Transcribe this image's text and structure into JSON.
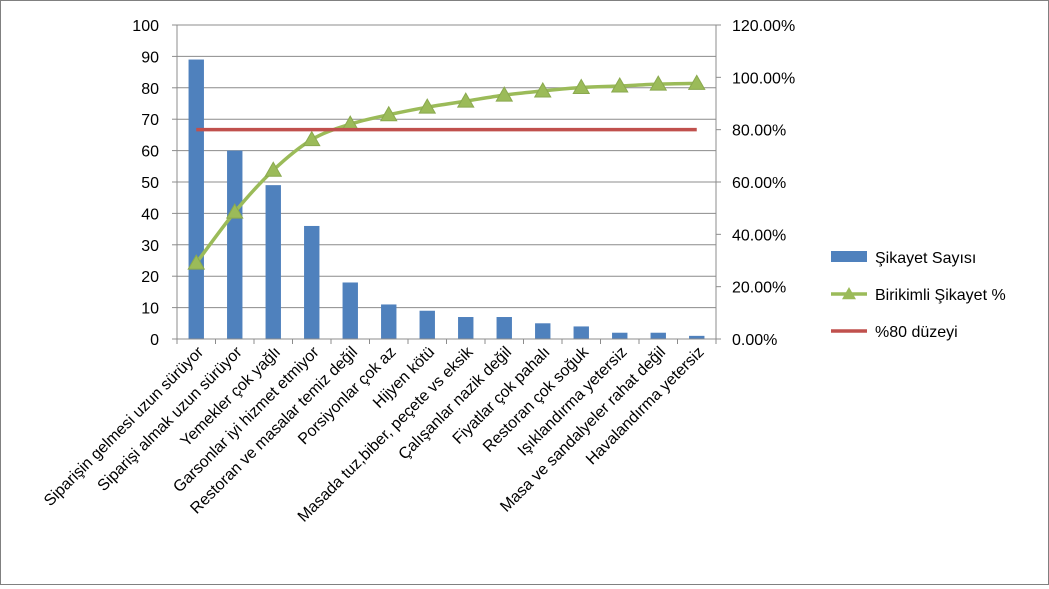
{
  "chart_data": {
    "type": "bar",
    "categories": [
      "Siparişin gelmesi uzun sürüyor",
      "Siparişi almak uzun sürüyor",
      "Yemekler çok yağlı",
      "Garsonlar iyi hizmet etmiyor",
      "Restoran ve masalar temiz değil",
      "Porsiyonlar çok az",
      "Hijyen kötü",
      "Masada tuz,biber, peçete vs eksik",
      "Çalışanlar nazik değil",
      "Fiyatlar çok pahalı",
      "Restoran çok soğuk",
      "Işıklandırma yetersiz",
      "Masa ve sandalyeler rahat değil",
      "Havalandırma yetersiz"
    ],
    "series": [
      {
        "name": "Şikayet Sayısı",
        "type": "bar",
        "axis": "left",
        "color": "#4F81BD",
        "values": [
          89,
          60,
          49,
          36,
          18,
          11,
          9,
          7,
          7,
          5,
          4,
          2,
          2,
          1
        ]
      },
      {
        "name": "Birikimli Şikayet %",
        "type": "line",
        "axis": "right",
        "color": "#9BBB59",
        "marker": "triangle",
        "values": [
          29.0,
          48.5,
          64.5,
          76.2,
          82.1,
          85.7,
          88.6,
          90.9,
          93.2,
          94.8,
          96.1,
          96.7,
          97.4,
          97.7
        ]
      },
      {
        "name": "%80 düzeyi",
        "type": "line",
        "axis": "right",
        "color": "#C0504D",
        "values": [
          80,
          80,
          80,
          80,
          80,
          80,
          80,
          80,
          80,
          80,
          80,
          80,
          80,
          80
        ]
      }
    ],
    "y_left": {
      "min": 0,
      "max": 100,
      "step": 10,
      "tick_labels": [
        "0",
        "10",
        "20",
        "30",
        "40",
        "50",
        "60",
        "70",
        "80",
        "90",
        "100"
      ]
    },
    "y_right": {
      "min": 0,
      "max": 120,
      "step": 20,
      "tick_labels": [
        "0.00%",
        "20.00%",
        "40.00%",
        "60.00%",
        "80.00%",
        "100.00%",
        "120.00%"
      ]
    },
    "grid": true,
    "legend_position": "right"
  }
}
